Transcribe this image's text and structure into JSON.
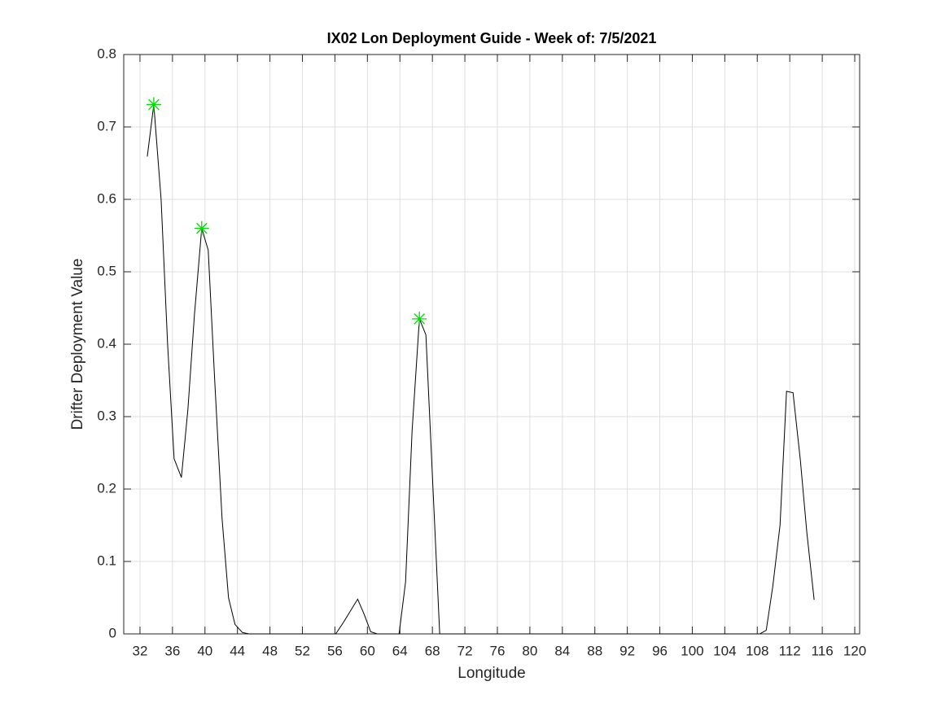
{
  "chart_data": {
    "type": "line",
    "title": "IX02 Lon Deployment Guide - Week of: 7/5/2021",
    "xlabel": "Longitude",
    "ylabel": "Drifter Deployment Value",
    "xlim": [
      30,
      120.6
    ],
    "ylim": [
      0,
      0.8
    ],
    "xticks": [
      32,
      36,
      40,
      44,
      48,
      52,
      56,
      60,
      64,
      68,
      72,
      76,
      80,
      84,
      88,
      92,
      96,
      100,
      104,
      108,
      112,
      116,
      120
    ],
    "yticks": [
      0,
      0.1,
      0.2,
      0.3,
      0.4,
      0.5,
      0.6,
      0.7,
      0.8
    ],
    "grid": true,
    "series": [
      {
        "color": "#000000",
        "x": [
          32.9,
          33.7,
          34.6,
          35.4,
          36.2,
          37.1,
          37.9,
          38.7,
          39.6,
          40.4,
          41.2,
          42.1,
          42.9,
          43.7,
          44.6,
          45.4,
          56.1,
          57.0,
          58.8,
          59.6,
          60.4,
          61.2,
          63.9,
          64.7,
          65.5,
          66.4,
          67.2,
          68.9,
          108.3,
          109.1,
          109.9,
          110.8,
          111.6,
          112.4,
          113.3,
          114.1,
          115.0
        ],
        "values": [
          0.659,
          0.731,
          0.6,
          0.4,
          0.242,
          0.216,
          0.31,
          0.44,
          0.56,
          0.53,
          0.35,
          0.16,
          0.05,
          0.013,
          0.002,
          0,
          0,
          0.015,
          0.048,
          0.027,
          0.003,
          0,
          0,
          0.072,
          0.28,
          0.435,
          0.413,
          0,
          0,
          0.005,
          0.065,
          0.15,
          0.335,
          0.333,
          0.24,
          0.14,
          0.047
        ]
      },
      {
        "color": "#00dd00",
        "marker": "asterisk",
        "x": [
          33.7,
          39.6,
          66.4
        ],
        "values": [
          0.731,
          0.56,
          0.435
        ]
      }
    ]
  }
}
